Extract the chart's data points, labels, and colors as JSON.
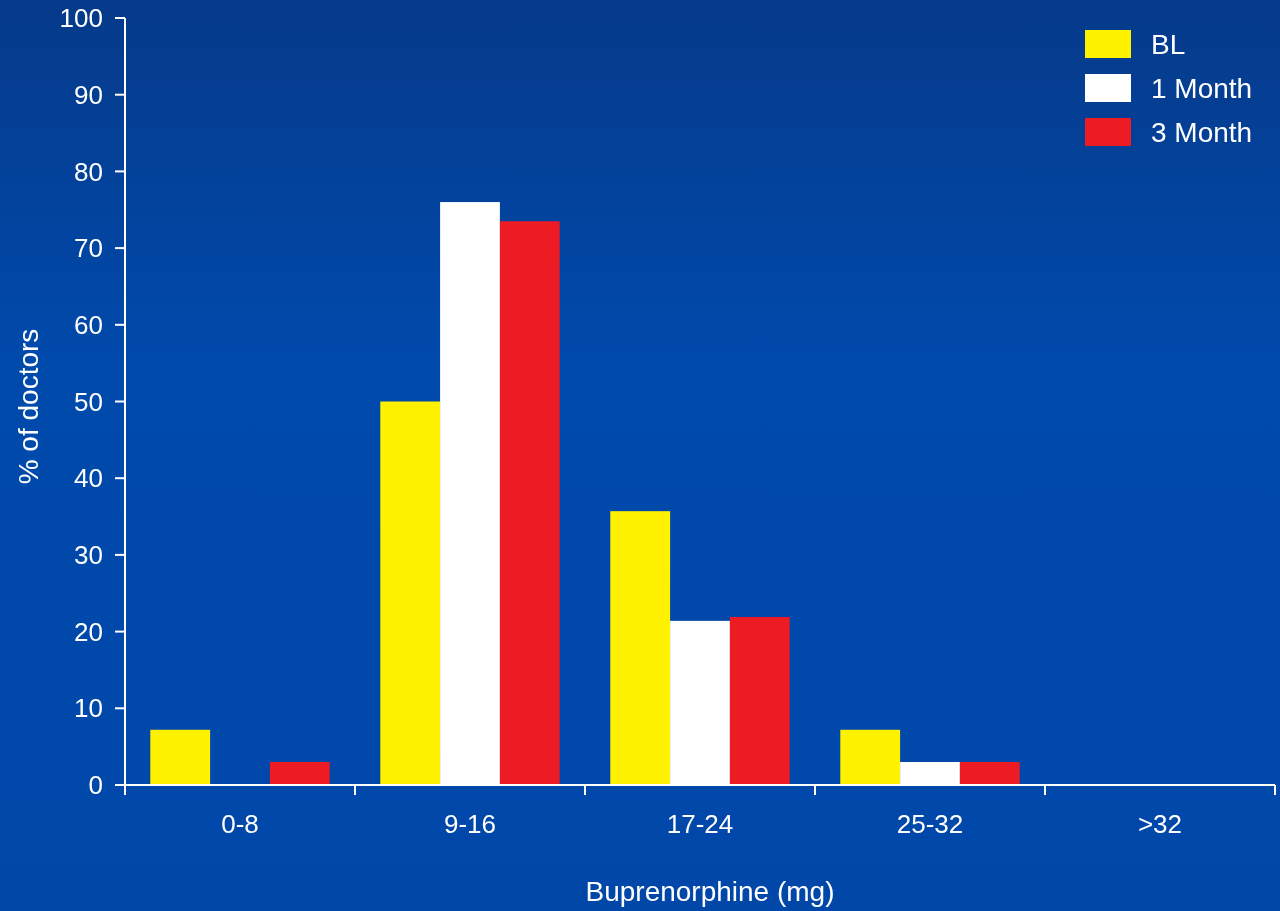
{
  "chart_data": {
    "type": "bar",
    "xlabel": "Buprenorphine (mg)",
    "ylabel": "% of doctors",
    "categories": [
      "0-8",
      "9-16",
      "17-24",
      "25-32",
      ">32"
    ],
    "series": [
      {
        "name": "BL",
        "color": "#fff200",
        "values": [
          7.2,
          50,
          35.7,
          7.2,
          0
        ]
      },
      {
        "name": "1 Month",
        "color": "#ffffff",
        "values": [
          0,
          76,
          21.4,
          3,
          0
        ]
      },
      {
        "name": "3 Month",
        "color": "#ed1c24",
        "values": [
          3,
          73.5,
          21.9,
          3,
          0
        ]
      }
    ],
    "ylim": [
      0,
      100
    ],
    "yticks": [
      0,
      10,
      20,
      30,
      40,
      50,
      60,
      70,
      80,
      90,
      100
    ],
    "grid": false,
    "legend": "top right"
  }
}
